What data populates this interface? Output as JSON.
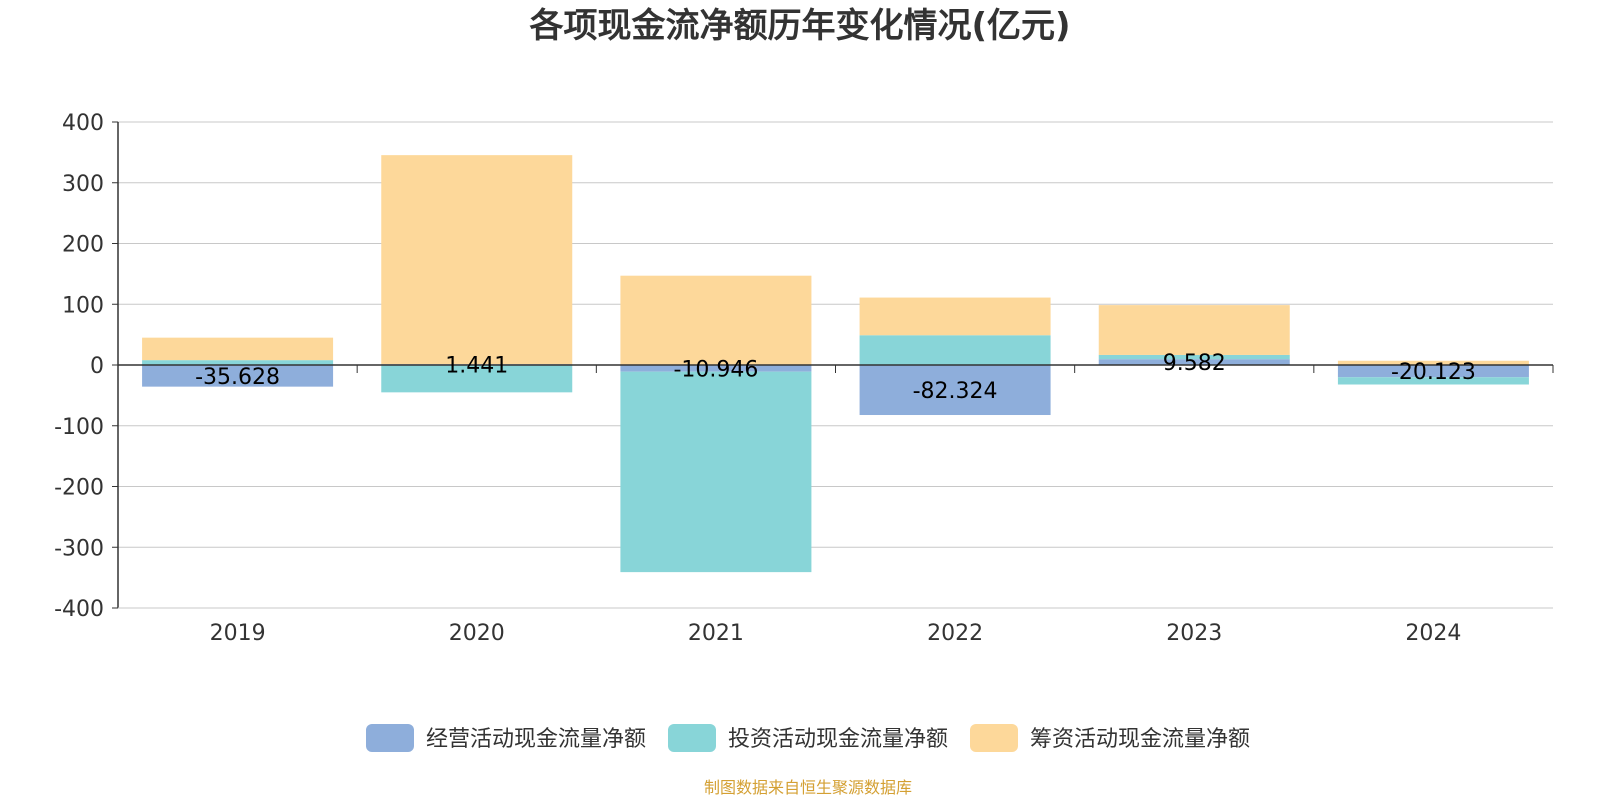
{
  "chart_data": {
    "type": "bar",
    "stacked": true,
    "title": "各项现金流净额历年变化情况(亿元)",
    "categories": [
      "2019",
      "2020",
      "2021",
      "2022",
      "2023",
      "2024"
    ],
    "ylim": [
      -400,
      400
    ],
    "yticks": [
      400,
      300,
      200,
      100,
      0,
      -100,
      -200,
      -300,
      -400
    ],
    "grid": true,
    "legend_position": "bottom",
    "series": [
      {
        "name": "经营活动现金流量净额",
        "color": "#8eaedb",
        "values": [
          -35.628,
          1.441,
          -10.946,
          -82.324,
          9.582,
          -20.123
        ],
        "labels": [
          "-35.628",
          "1.441",
          "-10.946",
          "-82.324",
          "9.582",
          "-20.123"
        ]
      },
      {
        "name": "投资活动现金流量净额",
        "color": "#88d5d8",
        "values": [
          8,
          -45,
          -330,
          49,
          7,
          -12
        ]
      },
      {
        "name": "筹资活动现金流量净额",
        "color": "#fdd89a",
        "values": [
          37,
          344,
          147,
          62,
          82,
          7
        ]
      }
    ],
    "source": "制图数据来自恒生聚源数据库",
    "source_color": "#d4a033"
  }
}
